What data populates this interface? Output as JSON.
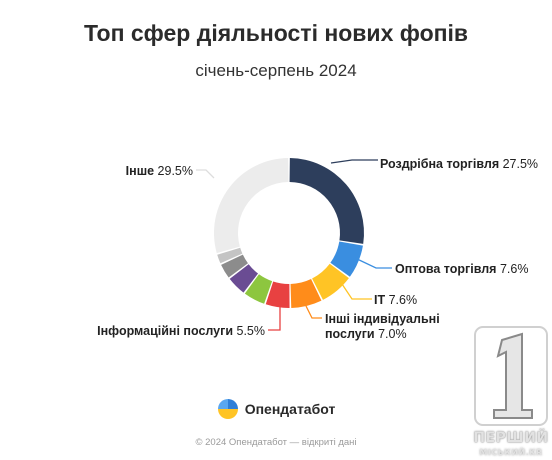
{
  "chart_data": {
    "type": "donut",
    "title": "Топ сфер діяльності нових фопів",
    "subtitle": "січень-серпень 2024",
    "total": 100,
    "slices": [
      {
        "label": "Роздрібна торгівля",
        "value": 27.5,
        "value_label": "27.5%",
        "color": "#2d3e5c",
        "labeled": true
      },
      {
        "label": "Оптова торгівля",
        "value": 7.6,
        "value_label": "7.6%",
        "color": "#3a8ee0",
        "labeled": true
      },
      {
        "label": "IT",
        "value": 7.6,
        "value_label": "7.6%",
        "color": "#ffc425",
        "labeled": true
      },
      {
        "label": "Інші індивідуальні послуги",
        "value": 7.0,
        "value_label": "7.0%",
        "color": "#ff8c1a",
        "labeled": true
      },
      {
        "label": "Інформаційні послуги",
        "value": 5.5,
        "value_label": "5.5%",
        "color": "#e84141",
        "labeled": true
      },
      {
        "value": 5.0,
        "color": "#8dc63f",
        "labeled": false
      },
      {
        "value": 4.5,
        "color": "#6a4c93",
        "labeled": false
      },
      {
        "value": 3.5,
        "color": "#8c8c8c",
        "labeled": false
      },
      {
        "value": 2.3,
        "color": "#c4c4c4",
        "labeled": false
      },
      {
        "label": "Інше",
        "value": 29.5,
        "value_label": "29.5%",
        "color": "#ececec",
        "labeled": true
      }
    ]
  },
  "brand": {
    "name": "Опендатабот"
  },
  "footer": {
    "text": "© 2024 Опендатабот — відкриті дані"
  },
  "watermark": {
    "number": "1",
    "text": "ПЕРШИЙ",
    "sub": "МІСЬКИЙ.KR"
  }
}
